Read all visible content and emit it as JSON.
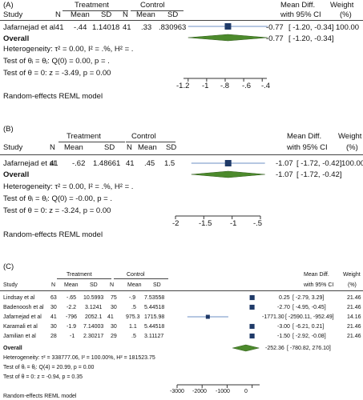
{
  "panels": [
    {
      "label": "(A)",
      "header": {
        "treatment": "Treatment",
        "control": "Control",
        "study": "Study",
        "n": "N",
        "mean": "Mean",
        "sd": "SD",
        "n2": "N",
        "mean2": "Mean",
        "sd2": "SD",
        "md_line1": "Mean Diff.",
        "md_line2": "with 95% CI",
        "w_line1": "Weight",
        "w_line2": "(%)"
      },
      "rows": [
        {
          "study": "Jafarnejad et al",
          "n1": "41",
          "mean1": "-.44",
          "sd1": "1.14018",
          "n2": "41",
          "mean2": ".33",
          "sd2": ".830963",
          "est_text": "-0.77",
          "ci_text": "[  -1.20,  -0.34]",
          "weight": "100.00"
        }
      ],
      "overall": {
        "label": "Overall",
        "est_text": "-0.77",
        "ci_text": "[  -1.20,  -0.34]"
      },
      "stats": [
        "Heterogeneity: τ² = 0.00, I² = .%, H² = .",
        "Test of θᵢ = θⱼ: Q(0) = 0.00, p = .",
        "Test of θ = 0: z = -3.49, p = 0.00"
      ],
      "model_note": "Random-effects REML model",
      "axis_ticks": [
        "-1.2",
        "-1",
        "-.8",
        "-.6",
        "-.4"
      ]
    },
    {
      "label": "(B)",
      "header": {
        "treatment": "Treatment",
        "control": "Control",
        "study": "Study",
        "n": "N",
        "mean": "Mean",
        "sd": "SD",
        "n2": "N",
        "mean2": "Mean",
        "sd2": "SD",
        "md_line1": "Mean Diff.",
        "md_line2": "with 95% CI",
        "w_line1": "Weight",
        "w_line2": "(%)"
      },
      "rows": [
        {
          "study": "Jafarnejad et al",
          "n1": "41",
          "mean1": "-.62",
          "sd1": "1.48661",
          "n2": "41",
          "mean2": ".45",
          "sd2": "1.5",
          "est_text": "-1.07",
          "ci_text": "[  -1.72,  -0.42]",
          "weight": "100.00"
        }
      ],
      "overall": {
        "label": "Overall",
        "est_text": "-1.07",
        "ci_text": "[  -1.72,  -0.42]"
      },
      "stats": [
        "Heterogeneity: τ² = 0.00, I² = .%, H² = .",
        "Test of θᵢ = θⱼ: Q(0) = -0.00, p = .",
        "Test of θ = 0: z = -3.24, p = 0.00"
      ],
      "model_note": "Random-effects REML model",
      "axis_ticks": [
        "-2",
        "-1.5",
        "-1",
        "-.5"
      ]
    },
    {
      "label": "(C)",
      "header": {
        "treatment": "Treatment",
        "control": "Control",
        "study": "Study",
        "n": "N",
        "mean": "Mean",
        "sd": "SD",
        "n2": "N",
        "mean2": "Mean",
        "sd2": "SD",
        "md_line1": "Mean Diff.",
        "md_line2": "with 95% CI",
        "w_line1": "Weight",
        "w_line2": "(%)"
      },
      "rows": [
        {
          "study": "Lindsay et al",
          "n1": "63",
          "mean1": "-.65",
          "sd1": "10.5993",
          "n2": "75",
          "mean2": "-.9",
          "sd2": "7.53558",
          "est_text": "0.25",
          "ci_text": "[  -2.79,    3.29]",
          "weight": "21.46"
        },
        {
          "study": "Badenoosh et al",
          "n1": "30",
          "mean1": "-2.2",
          "sd1": "3.1241",
          "n2": "30",
          "mean2": ".5",
          "sd2": "5.44518",
          "est_text": "-2.70",
          "ci_text": "[  -4.95,   -0.45]",
          "weight": "21.46"
        },
        {
          "study": "Jafarnejad et al",
          "n1": "41",
          "mean1": "-796",
          "sd1": "2052.1",
          "n2": "41",
          "mean2": "975.3",
          "sd2": "1715.98",
          "est_text": "-1771.30",
          "ci_text": "[ -2590.11, -952.49]",
          "weight": "14.16"
        },
        {
          "study": "Karamali et al",
          "n1": "30",
          "mean1": "-1.9",
          "sd1": "7.14003",
          "n2": "30",
          "mean2": "1.1",
          "sd2": "5.44518",
          "est_text": "-3.00",
          "ci_text": "[  -6.21,    0.21]",
          "weight": "21.46"
        },
        {
          "study": "Jamilian et al",
          "n1": "28",
          "mean1": "-1",
          "sd1": "2.30217",
          "n2": "29",
          "mean2": ".5",
          "sd2": "3.11127",
          "est_text": "-1.50",
          "ci_text": "[  -2.92,   -0.08]",
          "weight": "21.46"
        }
      ],
      "overall": {
        "label": "Overall",
        "est_text": "-252.36",
        "ci_text": "[ -780.82,  276.10]"
      },
      "stats": [
        "Heterogeneity: τ² = 338777.06, I² = 100.00%, H² = 181523.75",
        "Test of θᵢ = θⱼ: Q(4) = 20.99, p = 0.00",
        "Test of θ = 0: z = -0.94, p = 0.35"
      ],
      "model_note": "Random-effects REML model",
      "axis_ticks": [
        "-3000",
        "-2000",
        "-1000",
        "0"
      ]
    }
  ],
  "chart_data": [
    {
      "type": "forest",
      "title": "(A)",
      "x_ticks": [
        -1.2,
        -1.0,
        -0.8,
        -0.6,
        -0.4
      ],
      "xlim": [
        -1.25,
        -0.35
      ],
      "studies": [
        {
          "name": "Jafarnejad et al",
          "estimate": -0.77,
          "ci_low": -1.2,
          "ci_high": -0.34,
          "weight": 100.0
        }
      ],
      "overall": {
        "estimate": -0.77,
        "ci_low": -1.2,
        "ci_high": -0.34
      },
      "marker_color": "#1f3a68",
      "diamond_color": "#4c8a2c"
    },
    {
      "type": "forest",
      "title": "(B)",
      "x_ticks": [
        -2.0,
        -1.5,
        -1.0,
        -0.5
      ],
      "xlim": [
        -2.0,
        -0.5
      ],
      "studies": [
        {
          "name": "Jafarnejad et al",
          "estimate": -1.07,
          "ci_low": -1.72,
          "ci_high": -0.42,
          "weight": 100.0
        }
      ],
      "overall": {
        "estimate": -1.07,
        "ci_low": -1.72,
        "ci_high": -0.42
      },
      "marker_color": "#1f3a68",
      "diamond_color": "#4c8a2c"
    },
    {
      "type": "forest",
      "title": "(C)",
      "x_ticks": [
        -3000,
        -2000,
        -1000,
        0
      ],
      "xlim": [
        -3000,
        300
      ],
      "studies": [
        {
          "name": "Lindsay et al",
          "estimate": 0.25,
          "ci_low": -2.79,
          "ci_high": 3.29,
          "weight": 21.46
        },
        {
          "name": "Badenoosh et al",
          "estimate": -2.7,
          "ci_low": -4.95,
          "ci_high": -0.45,
          "weight": 21.46
        },
        {
          "name": "Jafarnejad et al",
          "estimate": -1771.3,
          "ci_low": -2590.11,
          "ci_high": -952.49,
          "weight": 14.16
        },
        {
          "name": "Karamali et al",
          "estimate": -3.0,
          "ci_low": -6.21,
          "ci_high": 0.21,
          "weight": 21.46
        },
        {
          "name": "Jamilian et al",
          "estimate": -1.5,
          "ci_low": -2.92,
          "ci_high": -0.08,
          "weight": 21.46
        }
      ],
      "overall": {
        "estimate": -252.36,
        "ci_low": -780.82,
        "ci_high": 276.1
      },
      "marker_color": "#1f3a68",
      "diamond_color": "#4c8a2c"
    }
  ]
}
